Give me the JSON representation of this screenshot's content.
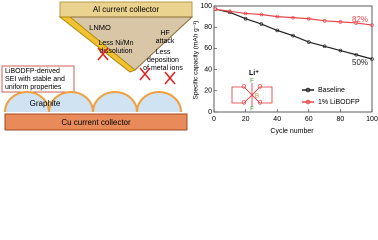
{
  "chart_data": {
    "type": "line",
    "xlabel": "Cycle number",
    "ylabel": "Specific capacity (mAh g⁻¹)",
    "x": [
      1,
      10,
      20,
      30,
      40,
      50,
      60,
      70,
      80,
      90,
      100
    ],
    "series": [
      {
        "name": "Baseline",
        "color": "#222222",
        "values": [
          97,
          94,
          88,
          83,
          77,
          72,
          66,
          62,
          58,
          54,
          50
        ]
      },
      {
        "name": "1% LiBODFP",
        "color": "#e8474a",
        "values": [
          97,
          95,
          93,
          92,
          90,
          89,
          88,
          86,
          85,
          84,
          82
        ]
      }
    ],
    "xlim": [
      0,
      100
    ],
    "xticks": [
      0,
      20,
      40,
      60,
      80,
      100
    ],
    "ylim": [
      0,
      100
    ],
    "yticks": [
      0,
      20,
      40,
      60,
      80,
      100
    ],
    "annotations": [
      {
        "text": "82%",
        "color": "#e8474a"
      },
      {
        "text": "50%",
        "color": "#222222"
      }
    ],
    "inset": {
      "cation": "Li⁺",
      "center": "B",
      "atoms": [
        "O",
        "O",
        "O",
        "O",
        "F",
        "F"
      ]
    }
  },
  "diagram": {
    "al": "Al current collector",
    "cathode": "LNMO",
    "hf": [
      "HF",
      "attack"
    ],
    "dissolution": [
      "Less Ni/Mn",
      "dissolution"
    ],
    "deposition": [
      "Less",
      "deposition",
      "of metal ions"
    ],
    "sei": [
      "LiBODFP-derived",
      "SEI with stable and",
      "uniform properties"
    ],
    "anode": "Graphite",
    "cu": "Cu current collector"
  }
}
